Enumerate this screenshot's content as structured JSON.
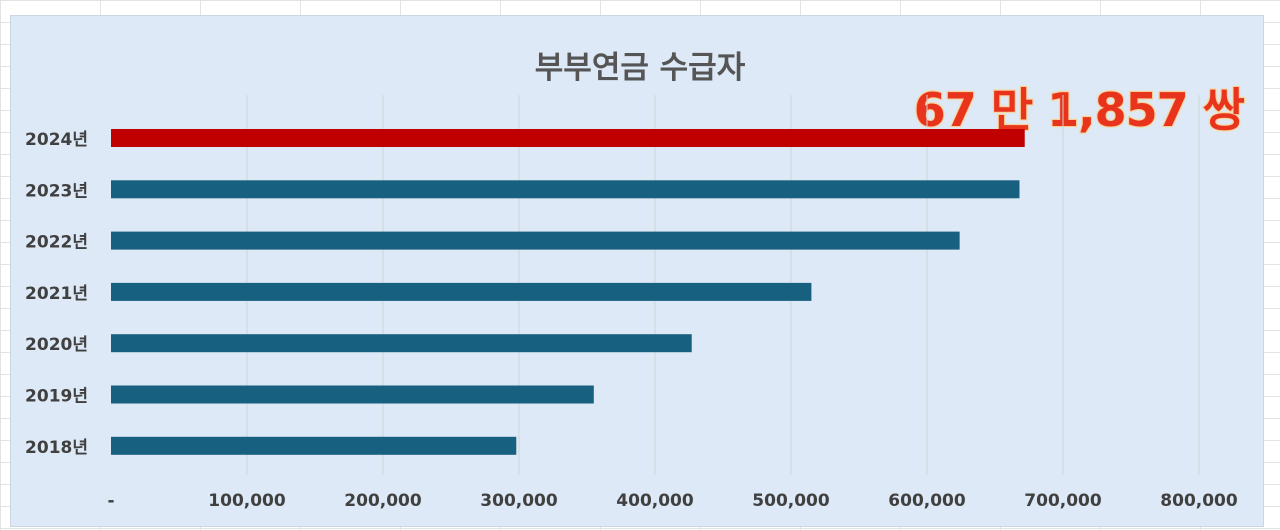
{
  "chart_data": {
    "type": "bar",
    "orientation": "horizontal",
    "title": "부부연금 수급자",
    "annotation": "67 만 1,857 쌍",
    "categories": [
      "2018년",
      "2019년",
      "2020년",
      "2021년",
      "2022년",
      "2023년",
      "2024년"
    ],
    "values": [
      298000,
      355000,
      427000,
      515000,
      624000,
      668000,
      671857
    ],
    "highlight_category": "2024년",
    "xlim": [
      0,
      800000
    ],
    "x_ticks": [
      0,
      100000,
      200000,
      300000,
      400000,
      500000,
      600000,
      700000,
      800000
    ],
    "x_tick_labels": [
      "-",
      "100,000",
      "200,000",
      "300,000",
      "400,000",
      "500,000",
      "600,000",
      "700,000",
      "800,000"
    ],
    "grid": "vertical",
    "legend": "none",
    "colors": {
      "bar": "#17607f",
      "highlight": "#c00000",
      "plot_background": "#dde9f6",
      "gridline": "#cfd3d6",
      "annotation": "#e8341c"
    }
  }
}
